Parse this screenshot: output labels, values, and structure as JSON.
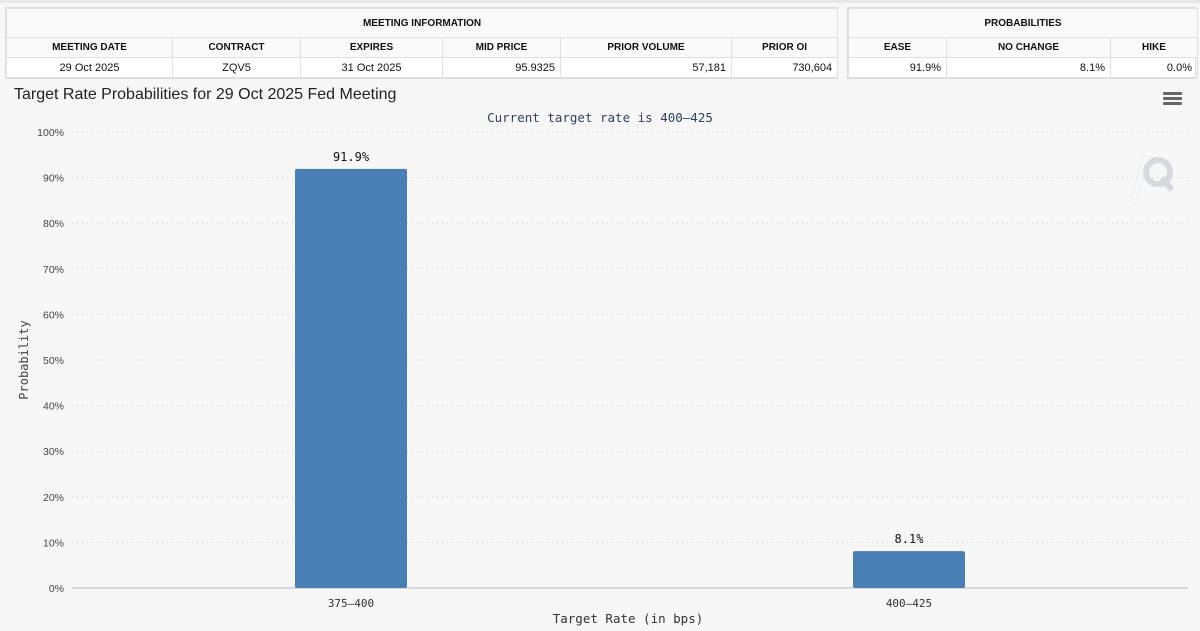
{
  "meeting_info": {
    "group_title": "MEETING INFORMATION",
    "headers": [
      "MEETING DATE",
      "CONTRACT",
      "EXPIRES",
      "MID PRICE",
      "PRIOR VOLUME",
      "PRIOR OI"
    ],
    "row": [
      "29 Oct 2025",
      "ZQV5",
      "31 Oct 2025",
      "95.9325",
      "57,181",
      "730,604"
    ]
  },
  "probabilities": {
    "group_title": "PROBABILITIES",
    "headers": [
      "EASE",
      "NO CHANGE",
      "HIKE"
    ],
    "row": [
      "91.9%",
      "8.1%",
      "0.0%"
    ]
  },
  "chart_title": "Target Rate Probabilities for 29 Oct 2025 Fed Meeting",
  "chart_data": {
    "type": "bar",
    "subtitle": "Current target rate is 400–425",
    "categories": [
      "375–400",
      "400–425"
    ],
    "values": [
      91.9,
      8.1
    ],
    "data_labels": [
      "91.9%",
      "8.1%"
    ],
    "xlabel": "Target Rate (in bps)",
    "ylabel": "Probability",
    "ylim": [
      0,
      100
    ],
    "yticks": [
      "0%",
      "10%",
      "20%",
      "30%",
      "40%",
      "50%",
      "60%",
      "70%",
      "80%",
      "90%",
      "100%"
    ],
    "grid": true,
    "bar_color": "#4a7fb5"
  },
  "icons": {
    "menu": "hamburger-menu-icon",
    "watermark": "q-watermark-logo"
  }
}
